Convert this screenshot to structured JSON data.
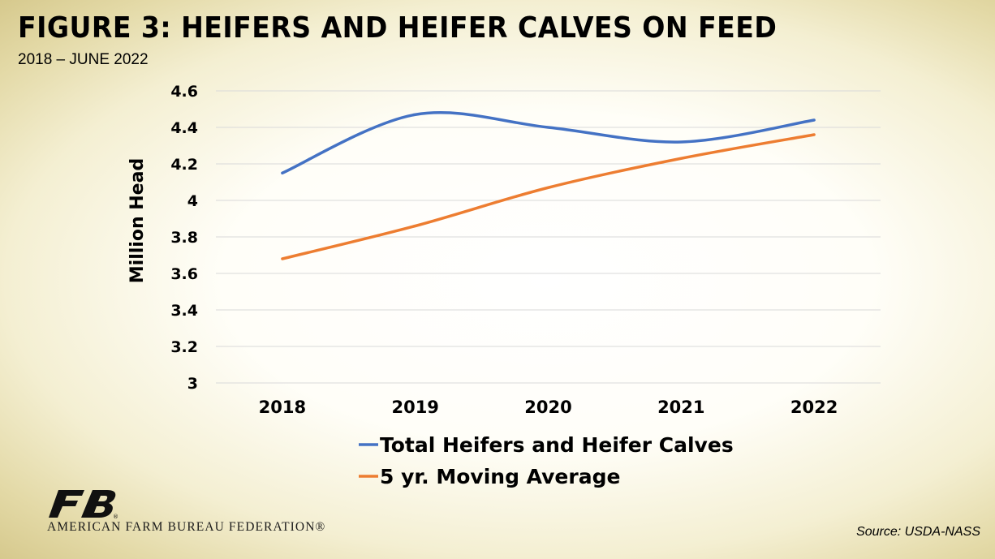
{
  "header": {
    "title": "FIGURE 3: HEIFERS AND HEIFER CALVES ON FEED",
    "subtitle": "2018 – JUNE 2022"
  },
  "footer": {
    "source": "Source: USDA-NASS",
    "org_name": "AMERICAN FARM BUREAU FEDERATION®"
  },
  "logo": {
    "icon": "fb-logo-icon",
    "color": "#111111"
  },
  "chart_data": {
    "type": "line",
    "title": "",
    "xlabel": "",
    "ylabel": "Million Head",
    "categories": [
      "2018",
      "2019",
      "2020",
      "2021",
      "2022"
    ],
    "ylim": [
      3,
      4.6
    ],
    "yticks": [
      "4.6",
      "4.4",
      "4.2",
      "4",
      "3.8",
      "3.6",
      "3.4",
      "3.2",
      "3"
    ],
    "ytick_values": [
      4.6,
      4.4,
      4.2,
      4.0,
      3.8,
      3.6,
      3.4,
      3.2,
      3.0
    ],
    "grid": true,
    "smooth": true,
    "legend_position": "bottom",
    "series": [
      {
        "name": "Total Heifers and Heifer Calves",
        "color": "#4472c4",
        "values": [
          4.15,
          4.47,
          4.4,
          4.32,
          4.44
        ]
      },
      {
        "name": "5 yr. Moving Average",
        "color": "#ed7d31",
        "values": [
          3.68,
          3.86,
          4.07,
          4.23,
          4.36
        ]
      }
    ]
  }
}
